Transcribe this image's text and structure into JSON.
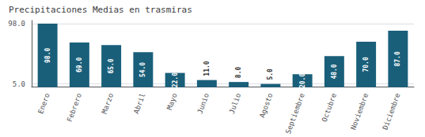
{
  "chart_data": {
    "type": "bar",
    "title": "Precipitaciones Medias en trasmiras",
    "categories": [
      "Enero",
      "Febrero",
      "Marzo",
      "Abril",
      "Mayo",
      "Junio",
      "Julio",
      "Agosto",
      "Septiembre",
      "Octubre",
      "Noviembre",
      "Diciembre"
    ],
    "values": [
      98.0,
      69.0,
      65.0,
      54.0,
      22.0,
      11.0,
      8.0,
      5.0,
      20.0,
      48.0,
      70.0,
      87.0
    ],
    "value_labels": [
      "98.0",
      "69.0",
      "65.0",
      "54.0",
      "22.0",
      "11.0",
      "8.0",
      "5.0",
      "20.0",
      "48.0",
      "70.0",
      "87.0"
    ],
    "data_labels": true,
    "color": "#1a5f7a",
    "ylim": [
      0,
      102.9
    ],
    "yticks": [
      {
        "value": 5.0,
        "label": "5.0"
      },
      {
        "value": 98.0,
        "label": "98.0"
      }
    ],
    "grid": true
  }
}
